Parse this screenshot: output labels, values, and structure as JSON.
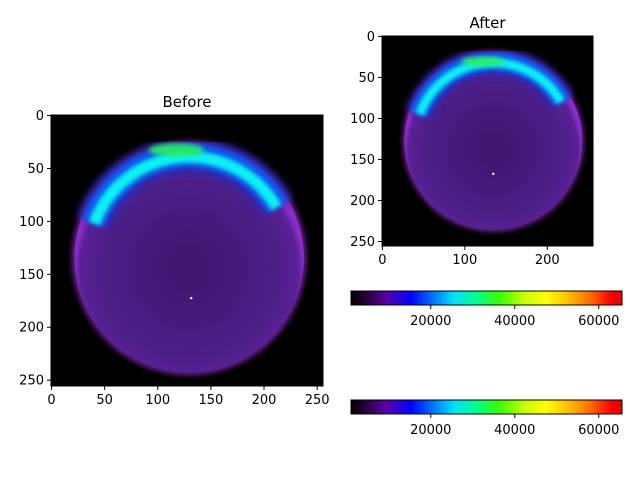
{
  "chart_data": [
    {
      "type": "heatmap",
      "title": "Before",
      "xlabel": "",
      "ylabel": "",
      "xlim": [
        0,
        255
      ],
      "ylim": [
        255,
        0
      ],
      "xticks": [
        0,
        50,
        100,
        150,
        200,
        250
      ],
      "yticks": [
        0,
        50,
        100,
        150,
        200,
        250
      ],
      "colormap": "gist_ncar-like (black-purple-blue-cyan-green-yellow-orange-red)",
      "grid": false,
      "content": {
        "disk_center": [
          130,
          135
        ],
        "disk_radius": 108,
        "bright_arc": "upper rim of disk, peak near (115, 35)"
      }
    },
    {
      "type": "heatmap",
      "title": "After",
      "xlabel": "",
      "ylabel": "",
      "xlim": [
        0,
        255
      ],
      "ylim": [
        255,
        0
      ],
      "xticks": [
        0,
        100,
        200
      ],
      "yticks": [
        0,
        50,
        100,
        150,
        200,
        250
      ],
      "colormap": "gist_ncar-like (black-purple-blue-cyan-green-yellow-orange-red)",
      "grid": false,
      "content": {
        "disk_center": [
          135,
          128
        ],
        "disk_radius": 108,
        "bright_arc": "upper rim of disk, peak near (120, 32)"
      }
    },
    {
      "type": "colorbar",
      "orientation": "horizontal",
      "range": [
        1000,
        65535
      ],
      "ticks": [
        20000,
        40000,
        60000
      ],
      "tick_labels": [
        "20000",
        "40000",
        "60000"
      ]
    },
    {
      "type": "colorbar",
      "orientation": "horizontal",
      "range": [
        1000,
        65535
      ],
      "ticks": [
        20000,
        40000,
        60000
      ],
      "tick_labels": [
        "20000",
        "40000",
        "60000"
      ]
    }
  ],
  "colors": {
    "background": "#000000",
    "disk": "#4a1e86",
    "disk_rim": "#9a2fd0",
    "arc_blue": "#0f56f0",
    "arc_cyan": "#10f2f2",
    "arc_green": "#2af05c"
  }
}
